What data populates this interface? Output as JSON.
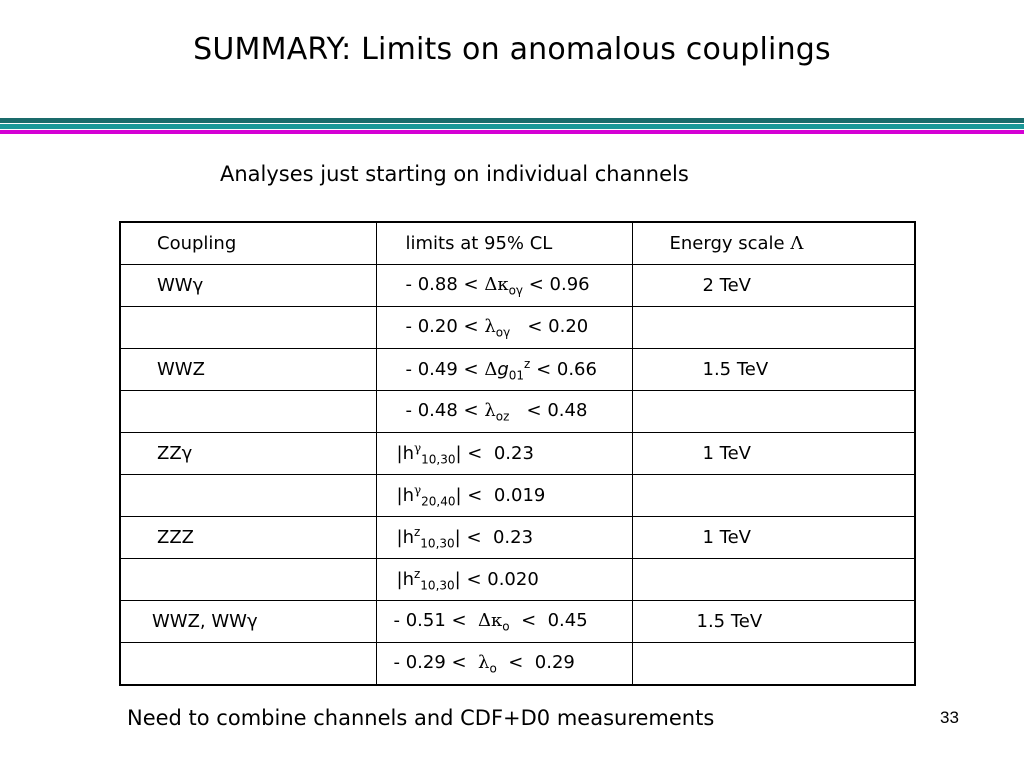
{
  "slide": {
    "title": "SUMMARY: Limits on anomalous couplings",
    "subtitle": "Analyses just starting on individual channels",
    "footer": "Need to combine channels and CDF+D0 measurements",
    "page_number": "33"
  },
  "table": {
    "headers": {
      "coupling": "Coupling",
      "limits": "limits at 95% CL",
      "energy": "Energy scale",
      "energy_symbol": "Λ"
    },
    "rows": [
      {
        "coupling": "WWγ",
        "limit": {
          "pre": "- 0.88 <  ",
          "sym": "Δκ",
          "sub": "oγ",
          "post": " < 0.96"
        },
        "energy": "2 TeV"
      },
      {
        "coupling": "",
        "limit": {
          "pre": "- 0.20 <  ",
          "sym": "λ",
          "sub": "oγ",
          "post": "   < 0.20"
        },
        "energy": ""
      },
      {
        "coupling": "WWZ",
        "limit": {
          "pre": "- 0.49 < ",
          "sym": "Δ",
          "main": "g",
          "sub": "01",
          "sup": "z",
          "post": " < 0.66"
        },
        "energy": "1.5 TeV"
      },
      {
        "coupling": "",
        "limit": {
          "pre": "- 0.48 < ",
          "sym": "λ",
          "sub": "oz",
          "post": "   < 0.48"
        },
        "energy": ""
      },
      {
        "coupling": "ZZγ",
        "limit": {
          "pre": "|h",
          "sup": "γ",
          "sub": "10,30",
          "post": "| <  0.23"
        },
        "energy": "1 TeV"
      },
      {
        "coupling": "",
        "limit": {
          "pre": "|h",
          "sup": "γ",
          "sub": "20,40",
          "post": "| <  0.019"
        },
        "energy": ""
      },
      {
        "coupling": "ZZZ",
        "limit": {
          "pre": "|h",
          "sup": "z",
          "sub": "10,30",
          "post": "| <  0.23"
        },
        "energy": "1 TeV"
      },
      {
        "coupling": "",
        "limit": {
          "pre": "|h",
          "sup": "z",
          "sub": "10,30",
          "post": "| < 0.020"
        },
        "energy": ""
      },
      {
        "coupling": "WWZ, WWγ",
        "limit": {
          "pre": "- 0.51 <  ",
          "sym": "Δκ",
          "sub": "o",
          "post": "  <  0.45"
        },
        "energy": "1.5 TeV"
      },
      {
        "coupling": "",
        "limit": {
          "pre": "- 0.29 <  ",
          "sym": "λ",
          "sub": "o",
          "post": "  <  0.29"
        },
        "energy": ""
      }
    ]
  }
}
